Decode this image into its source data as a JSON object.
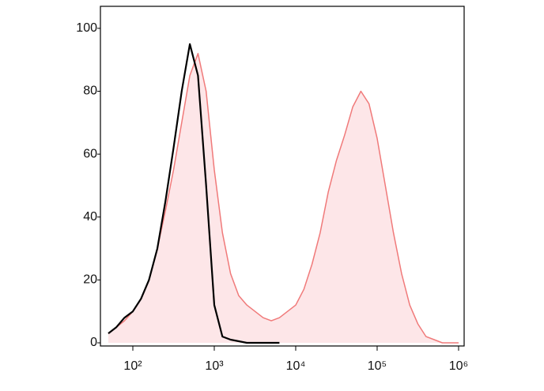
{
  "chart_data": {
    "type": "histogram-overlay",
    "xscale": "log",
    "xlim": [
      40,
      1170000
    ],
    "ylim": [
      -1,
      107
    ],
    "xticks": [
      {
        "value": 100,
        "label": "10²"
      },
      {
        "value": 1000,
        "label": "10³"
      },
      {
        "value": 10000,
        "label": "10⁴"
      },
      {
        "value": 100000,
        "label": "10⁵"
      },
      {
        "value": 1000000,
        "label": "10⁶"
      }
    ],
    "yticks": [
      0,
      20,
      40,
      60,
      80,
      100
    ],
    "series": [
      {
        "color": "#f07a7a",
        "fill": "#fde6e8",
        "x": [
          50,
          63,
          79,
          100,
          126,
          158,
          200,
          251,
          316,
          398,
          501,
          631,
          794,
          1000,
          1259,
          1585,
          1995,
          2512,
          3162,
          3981,
          5012,
          6310,
          7943,
          10000,
          12589,
          15849,
          19953,
          25119,
          31623,
          39811,
          50119,
          63096,
          79433,
          100000,
          125893,
          158489,
          199526,
          251189,
          316228,
          398107,
          501187,
          630957,
          794328,
          1000000
        ],
        "values": [
          3,
          5,
          7,
          10,
          14,
          20,
          30,
          42,
          55,
          70,
          85,
          92,
          80,
          55,
          35,
          22,
          15,
          12,
          10,
          8,
          7,
          8,
          10,
          12,
          17,
          25,
          35,
          48,
          58,
          66,
          75,
          80,
          76,
          65,
          50,
          35,
          22,
          12,
          6,
          2,
          1,
          0,
          0,
          0
        ]
      },
      {
        "color": "#000000",
        "fill": null,
        "x": [
          50,
          63,
          79,
          100,
          126,
          158,
          200,
          251,
          316,
          398,
          501,
          631,
          794,
          1000,
          1259,
          1585,
          1995,
          2512,
          3162,
          3981,
          5012,
          6310
        ],
        "values": [
          3,
          5,
          8,
          10,
          14,
          20,
          30,
          45,
          62,
          80,
          95,
          85,
          50,
          12,
          2,
          1,
          0.5,
          0,
          0,
          0,
          0,
          0
        ]
      }
    ]
  }
}
